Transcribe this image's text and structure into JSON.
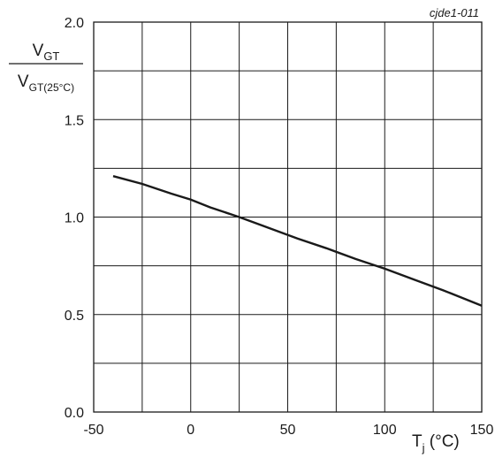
{
  "chart_data": {
    "type": "line",
    "figure_code": "cjde1-011",
    "ylabel": {
      "numerator": {
        "main": "V",
        "sub": "GT"
      },
      "denominator": {
        "main": "V",
        "sub": "GT(25°C)"
      }
    },
    "xlabel": {
      "main": "T",
      "sub": "j",
      "unit": " (°C)"
    },
    "xlim": [
      -50,
      150
    ],
    "ylim": [
      0.0,
      2.0
    ],
    "x_ticks": [
      "-50",
      "0",
      "50",
      "100",
      "150"
    ],
    "y_ticks": [
      "0.0",
      "0.5",
      "1.0",
      "1.5",
      "2.0"
    ],
    "grid": true,
    "series": [
      {
        "x": [
          -40,
          -25,
          -10,
          0,
          10,
          25,
          40,
          55,
          70,
          85,
          100,
          115,
          130,
          150
        ],
        "y": [
          1.21,
          1.17,
          1.12,
          1.09,
          1.05,
          1.0,
          0.945,
          0.89,
          0.84,
          0.785,
          0.735,
          0.68,
          0.625,
          0.545
        ]
      }
    ]
  }
}
